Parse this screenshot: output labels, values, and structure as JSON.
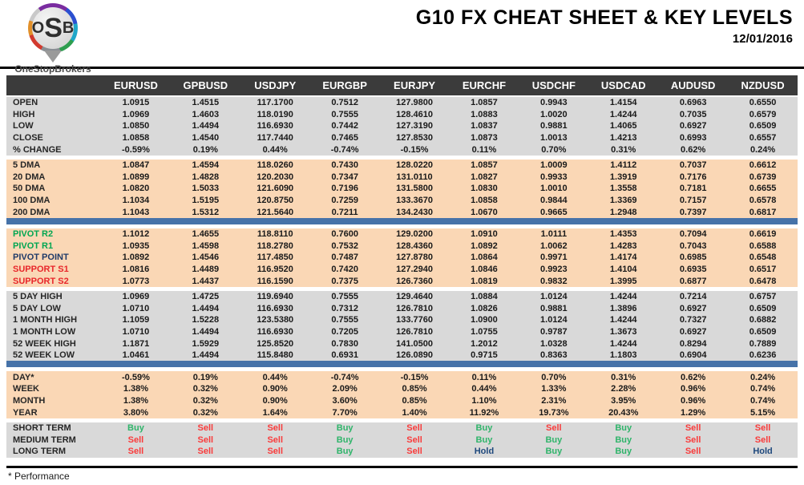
{
  "logo": {
    "monogram_o": "O",
    "monogram_s": "S",
    "monogram_b": "B",
    "name": "OneStopBrokers"
  },
  "header": {
    "title": "G10 FX CHEAT SHEET & KEY LEVELS",
    "date": "12/01/2016"
  },
  "footer": {
    "note": "* Performance"
  },
  "colors": {
    "header_bg": "#3B3B3B",
    "header_text": "#FFFFFF",
    "gray_bg": "#D9D9D9",
    "peach_bg": "#FAD7B5",
    "divider_blue": "#4672A8",
    "labels": {
      "default": "#262626",
      "green": "#00A651",
      "navy": "#1F3A68",
      "red": "#E8262A"
    },
    "signals": {
      "Buy": "#2FB46A",
      "Sell": "#F93B3B",
      "Hold": "#1F497D"
    }
  },
  "table": {
    "columns": [
      "EURUSD",
      "GPBUSD",
      "USDJPY",
      "EURGBP",
      "EURJPY",
      "EURCHF",
      "USDCHF",
      "USDCAD",
      "AUDUSD",
      "NZDUSD"
    ],
    "sections": [
      {
        "name": "ohlc",
        "bg": "gray",
        "divider_after": false,
        "rows": [
          {
            "label": "OPEN",
            "values": [
              "1.0915",
              "1.4515",
              "117.1700",
              "0.7512",
              "127.9800",
              "1.0857",
              "0.9943",
              "1.4154",
              "0.6963",
              "0.6550"
            ]
          },
          {
            "label": "HIGH",
            "values": [
              "1.0969",
              "1.4603",
              "118.0190",
              "0.7555",
              "128.4610",
              "1.0883",
              "1.0020",
              "1.4244",
              "0.7035",
              "0.6579"
            ]
          },
          {
            "label": "LOW",
            "values": [
              "1.0850",
              "1.4494",
              "116.6930",
              "0.7442",
              "127.3190",
              "1.0837",
              "0.9881",
              "1.4065",
              "0.6927",
              "0.6509"
            ]
          },
          {
            "label": "CLOSE",
            "values": [
              "1.0858",
              "1.4540",
              "117.7440",
              "0.7465",
              "127.8530",
              "1.0873",
              "1.0013",
              "1.4213",
              "0.6993",
              "0.6557"
            ]
          },
          {
            "label": "% CHANGE",
            "values": [
              "-0.59%",
              "0.19%",
              "0.44%",
              "-0.74%",
              "-0.15%",
              "0.11%",
              "0.70%",
              "0.31%",
              "0.62%",
              "0.24%"
            ]
          }
        ]
      },
      {
        "name": "moving-averages",
        "bg": "peach",
        "divider_after": true,
        "rows": [
          {
            "label": "5 DMA",
            "values": [
              "1.0847",
              "1.4594",
              "118.0260",
              "0.7430",
              "128.0220",
              "1.0857",
              "1.0009",
              "1.4112",
              "0.7037",
              "0.6612"
            ]
          },
          {
            "label": "20 DMA",
            "values": [
              "1.0899",
              "1.4828",
              "120.2030",
              "0.7347",
              "131.0110",
              "1.0827",
              "0.9933",
              "1.3919",
              "0.7176",
              "0.6739"
            ]
          },
          {
            "label": "50 DMA",
            "values": [
              "1.0820",
              "1.5033",
              "121.6090",
              "0.7196",
              "131.5800",
              "1.0830",
              "1.0010",
              "1.3558",
              "0.7181",
              "0.6655"
            ]
          },
          {
            "label": "100 DMA",
            "values": [
              "1.1034",
              "1.5195",
              "120.8750",
              "0.7259",
              "133.3670",
              "1.0858",
              "0.9844",
              "1.3369",
              "0.7157",
              "0.6578"
            ]
          },
          {
            "label": "200 DMA",
            "values": [
              "1.1043",
              "1.5312",
              "121.5640",
              "0.7211",
              "134.2430",
              "1.0670",
              "0.9665",
              "1.2948",
              "0.7397",
              "0.6817"
            ]
          }
        ]
      },
      {
        "name": "pivots",
        "bg": "peach",
        "divider_after": false,
        "rows": [
          {
            "label": "PIVOT R2",
            "label_color": "green",
            "values": [
              "1.1012",
              "1.4655",
              "118.8110",
              "0.7600",
              "129.0200",
              "1.0910",
              "1.0111",
              "1.4353",
              "0.7094",
              "0.6619"
            ]
          },
          {
            "label": "PIVOT R1",
            "label_color": "green",
            "values": [
              "1.0935",
              "1.4598",
              "118.2780",
              "0.7532",
              "128.4360",
              "1.0892",
              "1.0062",
              "1.4283",
              "0.7043",
              "0.6588"
            ]
          },
          {
            "label": "PIVOT POINT",
            "label_color": "navy",
            "values": [
              "1.0892",
              "1.4546",
              "117.4850",
              "0.7487",
              "127.8780",
              "1.0864",
              "0.9971",
              "1.4174",
              "0.6985",
              "0.6548"
            ]
          },
          {
            "label": "SUPPORT S1",
            "label_color": "red",
            "values": [
              "1.0816",
              "1.4489",
              "116.9520",
              "0.7420",
              "127.2940",
              "1.0846",
              "0.9923",
              "1.4104",
              "0.6935",
              "0.6517"
            ]
          },
          {
            "label": "SUPPORT S2",
            "label_color": "red",
            "values": [
              "1.0773",
              "1.4437",
              "116.1590",
              "0.7375",
              "126.7360",
              "1.0819",
              "0.9832",
              "1.3995",
              "0.6877",
              "0.6478"
            ]
          }
        ]
      },
      {
        "name": "ranges",
        "bg": "gray",
        "divider_after": true,
        "rows": [
          {
            "label": "5 DAY HIGH",
            "values": [
              "1.0969",
              "1.4725",
              "119.6940",
              "0.7555",
              "129.4640",
              "1.0884",
              "1.0124",
              "1.4244",
              "0.7214",
              "0.6757"
            ]
          },
          {
            "label": "5 DAY LOW",
            "values": [
              "1.0710",
              "1.4494",
              "116.6930",
              "0.7312",
              "126.7810",
              "1.0826",
              "0.9881",
              "1.3896",
              "0.6927",
              "0.6509"
            ]
          },
          {
            "label": "1 MONTH HIGH",
            "values": [
              "1.1059",
              "1.5228",
              "123.5380",
              "0.7555",
              "133.7760",
              "1.0900",
              "1.0124",
              "1.4244",
              "0.7327",
              "0.6882"
            ]
          },
          {
            "label": "1 MONTH LOW",
            "values": [
              "1.0710",
              "1.4494",
              "116.6930",
              "0.7205",
              "126.7810",
              "1.0755",
              "0.9787",
              "1.3673",
              "0.6927",
              "0.6509"
            ]
          },
          {
            "label": "52 WEEK HIGH",
            "values": [
              "1.1871",
              "1.5929",
              "125.8520",
              "0.7830",
              "141.0500",
              "1.2012",
              "1.0328",
              "1.4244",
              "0.8294",
              "0.7889"
            ]
          },
          {
            "label": "52 WEEK LOW",
            "values": [
              "1.0461",
              "1.4494",
              "115.8480",
              "0.6931",
              "126.0890",
              "0.9715",
              "0.8363",
              "1.1803",
              "0.6904",
              "0.6236"
            ]
          }
        ]
      },
      {
        "name": "performance",
        "bg": "peach",
        "divider_after": false,
        "rows": [
          {
            "label": "DAY*",
            "values": [
              "-0.59%",
              "0.19%",
              "0.44%",
              "-0.74%",
              "-0.15%",
              "0.11%",
              "0.70%",
              "0.31%",
              "0.62%",
              "0.24%"
            ]
          },
          {
            "label": "WEEK",
            "values": [
              "1.38%",
              "0.32%",
              "0.90%",
              "2.09%",
              "0.85%",
              "0.44%",
              "1.33%",
              "2.28%",
              "0.96%",
              "0.74%"
            ]
          },
          {
            "label": "MONTH",
            "values": [
              "1.38%",
              "0.32%",
              "0.90%",
              "3.60%",
              "0.85%",
              "1.10%",
              "2.31%",
              "3.95%",
              "0.96%",
              "0.74%"
            ]
          },
          {
            "label": "YEAR",
            "values": [
              "3.80%",
              "0.32%",
              "1.64%",
              "7.70%",
              "1.40%",
              "11.92%",
              "19.73%",
              "20.43%",
              "1.29%",
              "5.15%"
            ]
          }
        ]
      },
      {
        "name": "signals",
        "bg": "gray",
        "divider_after": false,
        "signal_colors": true,
        "rows": [
          {
            "label": "SHORT TERM",
            "values": [
              "Buy",
              "Sell",
              "Sell",
              "Buy",
              "Sell",
              "Buy",
              "Sell",
              "Buy",
              "Sell",
              "Sell"
            ]
          },
          {
            "label": "MEDIUM TERM",
            "values": [
              "Sell",
              "Sell",
              "Sell",
              "Buy",
              "Sell",
              "Buy",
              "Buy",
              "Buy",
              "Sell",
              "Sell"
            ]
          },
          {
            "label": "LONG TERM",
            "values": [
              "Sell",
              "Sell",
              "Sell",
              "Buy",
              "Sell",
              "Hold",
              "Buy",
              "Buy",
              "Sell",
              "Hold"
            ]
          }
        ]
      }
    ]
  }
}
